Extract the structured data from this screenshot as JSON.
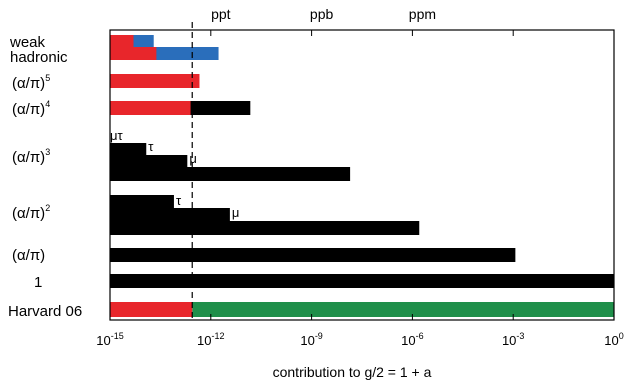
{
  "chart_data": {
    "type": "bar",
    "orientation": "horizontal",
    "x_scale": "log10",
    "xlim": [
      1e-15,
      1
    ],
    "xlabel": "contribution to g/2 = 1 + a",
    "x_ticks": [
      {
        "value": 1e-15,
        "base": "10",
        "exp": "-15"
      },
      {
        "value": 1e-12,
        "base": "10",
        "exp": "-12"
      },
      {
        "value": 1e-09,
        "base": "10",
        "exp": "-9"
      },
      {
        "value": 1e-06,
        "base": "10",
        "exp": "-6"
      },
      {
        "value": 0.001,
        "base": "10",
        "exp": "-3"
      },
      {
        "value": 1,
        "base": "10",
        "exp": "0"
      }
    ],
    "top_labels": [
      {
        "text": "ppt",
        "value": 1e-12
      },
      {
        "text": "ppb",
        "value": 1e-09
      },
      {
        "text": "ppm",
        "value": 1e-06
      }
    ],
    "reference_line": {
      "value": 2.8e-13,
      "style": "dashed"
    },
    "row_labels": [
      {
        "key": "weak",
        "main": "weak",
        "sup": "",
        "color": "#2a6ebb"
      },
      {
        "key": "hadronic",
        "main": "hadronic",
        "sup": "",
        "color": "#2a6ebb"
      },
      {
        "key": "a5",
        "main": "(α/π)",
        "sup": "5",
        "color": "#000000"
      },
      {
        "key": "a4",
        "main": "(α/π)",
        "sup": "4",
        "color": "#000000"
      },
      {
        "key": "a3",
        "main": "(α/π)",
        "sup": "3",
        "color": "#000000"
      },
      {
        "key": "a2",
        "main": "(α/π)",
        "sup": "2",
        "color": "#000000"
      },
      {
        "key": "a1",
        "main": "(α/π)",
        "sup": "",
        "color": "#000000"
      },
      {
        "key": "one",
        "main": "1",
        "sup": "",
        "color": "#000000"
      },
      {
        "key": "harvard",
        "main": "Harvard 06",
        "sup": "",
        "color": "#2ca02c"
      }
    ],
    "bars": [
      {
        "row": "weak",
        "end": 5e-15,
        "color": "#e8262b",
        "layer": 2
      },
      {
        "row": "weak",
        "end": 2e-14,
        "color": "#2a6ebb",
        "layer": 1
      },
      {
        "row": "hadronic",
        "end": 2.4e-14,
        "color": "#e8262b",
        "layer": 2
      },
      {
        "row": "hadronic",
        "end": 1.7e-12,
        "color": "#2a6ebb",
        "layer": 1
      },
      {
        "row": "a5",
        "end": 4.6e-13,
        "color": "#e8262b",
        "layer": 1
      },
      {
        "row": "a4",
        "end": 2.5e-13,
        "color": "#e8262b",
        "layer": 2
      },
      {
        "row": "a4",
        "end": 1.5e-11,
        "color": "#000000",
        "layer": 1
      },
      {
        "row": "a3",
        "sub": "mutau",
        "end": 6e-15,
        "color": "#000000",
        "layer": 1
      },
      {
        "row": "a3",
        "sub": "tau",
        "end": 1.2e-14,
        "color": "#000000",
        "layer": 1
      },
      {
        "row": "a3",
        "sub": "mu",
        "end": 2e-13,
        "color": "#000000",
        "layer": 1
      },
      {
        "row": "a3",
        "sub": "e",
        "end": 1.4e-08,
        "color": "#000000",
        "layer": 1
      },
      {
        "row": "a2",
        "sub": "tau",
        "end": 8e-14,
        "color": "#000000",
        "layer": 1
      },
      {
        "row": "a2",
        "sub": "mu",
        "end": 3.7e-12,
        "color": "#000000",
        "layer": 1
      },
      {
        "row": "a2",
        "sub": "e",
        "end": 1.6e-06,
        "color": "#000000",
        "layer": 1
      },
      {
        "row": "a1",
        "end": 0.00116,
        "color": "#000000",
        "layer": 1
      },
      {
        "row": "one",
        "end": 1,
        "color": "#000000",
        "layer": 1
      },
      {
        "row": "harvard",
        "end": 2.8e-13,
        "color": "#e8262b",
        "layer": 2
      },
      {
        "row": "harvard",
        "start": 2.8e-13,
        "end": 1,
        "color": "#1f8f4a",
        "layer": 1
      }
    ],
    "bar_annotations": [
      {
        "text": "μτ",
        "row": "a3",
        "value": 9e-15
      },
      {
        "text": "τ",
        "row": "a3",
        "value": 1.2e-14
      },
      {
        "text": "μ",
        "row": "a3",
        "value": 2e-13
      },
      {
        "text": "τ",
        "row": "a2",
        "value": 8e-14
      },
      {
        "text": "μ",
        "row": "a2",
        "value": 3.7e-12
      }
    ]
  }
}
